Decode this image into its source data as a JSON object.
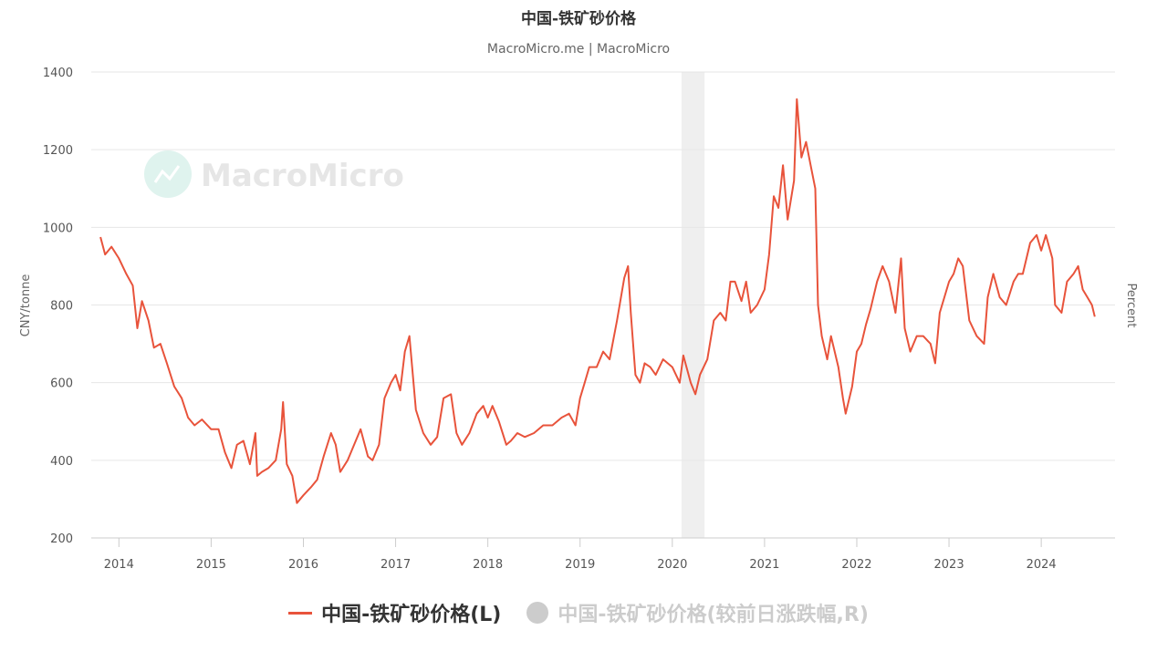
{
  "chart_data": {
    "type": "line",
    "title": "中国-铁矿砂价格",
    "subtitle": "MacroMicro.me | MacroMicro",
    "watermark": "MacroMicro",
    "ylabel_left": "CNY/tonne",
    "ylabel_right": "Percent",
    "ylim": [
      200,
      1400
    ],
    "yticks": [
      200,
      400,
      600,
      800,
      1000,
      1200,
      1400
    ],
    "xlim": [
      2013.7,
      2024.8
    ],
    "xticks": [
      "2014",
      "2015",
      "2016",
      "2017",
      "2018",
      "2019",
      "2020",
      "2021",
      "2022",
      "2023",
      "2024"
    ],
    "grid": true,
    "legend_position": "bottom",
    "shaded_region": {
      "start": 2020.1,
      "end": 2020.35
    },
    "series": [
      {
        "name": "中国-铁矿砂价格(L)",
        "color": "#e8533b",
        "visible": true,
        "x": [
          2013.8,
          2013.85,
          2013.92,
          2014.0,
          2014.08,
          2014.15,
          2014.2,
          2014.25,
          2014.32,
          2014.38,
          2014.45,
          2014.52,
          2014.6,
          2014.68,
          2014.75,
          2014.82,
          2014.9,
          2015.0,
          2015.08,
          2015.15,
          2015.22,
          2015.28,
          2015.35,
          2015.42,
          2015.48,
          2015.5,
          2015.55,
          2015.62,
          2015.7,
          2015.76,
          2015.78,
          2015.82,
          2015.88,
          2015.93,
          2016.0,
          2016.08,
          2016.15,
          2016.22,
          2016.3,
          2016.35,
          2016.4,
          2016.48,
          2016.55,
          2016.62,
          2016.7,
          2016.75,
          2016.82,
          2016.88,
          2016.95,
          2017.0,
          2017.05,
          2017.1,
          2017.15,
          2017.22,
          2017.3,
          2017.38,
          2017.45,
          2017.52,
          2017.6,
          2017.66,
          2017.72,
          2017.8,
          2017.88,
          2017.95,
          2018.0,
          2018.05,
          2018.12,
          2018.2,
          2018.25,
          2018.32,
          2018.4,
          2018.5,
          2018.6,
          2018.7,
          2018.8,
          2018.88,
          2018.95,
          2019.0,
          2019.05,
          2019.1,
          2019.18,
          2019.25,
          2019.32,
          2019.4,
          2019.48,
          2019.52,
          2019.55,
          2019.6,
          2019.65,
          2019.7,
          2019.76,
          2019.82,
          2019.9,
          2020.0,
          2020.08,
          2020.12,
          2020.2,
          2020.25,
          2020.3,
          2020.38,
          2020.45,
          2020.52,
          2020.58,
          2020.63,
          2020.68,
          2020.75,
          2020.8,
          2020.85,
          2020.92,
          2021.0,
          2021.05,
          2021.1,
          2021.15,
          2021.2,
          2021.25,
          2021.32,
          2021.35,
          2021.4,
          2021.45,
          2021.5,
          2021.55,
          2021.58,
          2021.62,
          2021.68,
          2021.72,
          2021.8,
          2021.85,
          2021.88,
          2021.95,
          2022.0,
          2022.05,
          2022.1,
          2022.15,
          2022.22,
          2022.28,
          2022.35,
          2022.42,
          2022.48,
          2022.52,
          2022.58,
          2022.65,
          2022.72,
          2022.8,
          2022.85,
          2022.9,
          2022.95,
          2023.0,
          2023.05,
          2023.1,
          2023.15,
          2023.22,
          2023.3,
          2023.38,
          2023.42,
          2023.48,
          2023.55,
          2023.62,
          2023.7,
          2023.75,
          2023.8,
          2023.88,
          2023.95,
          2024.0,
          2024.05,
          2024.12,
          2024.15,
          2024.22,
          2024.28,
          2024.35,
          2024.4,
          2024.45,
          2024.5,
          2024.55,
          2024.58
        ],
        "values": [
          975,
          930,
          950,
          920,
          880,
          850,
          740,
          810,
          760,
          690,
          700,
          650,
          590,
          560,
          510,
          490,
          505,
          480,
          480,
          420,
          380,
          440,
          450,
          390,
          470,
          360,
          370,
          380,
          400,
          480,
          550,
          390,
          360,
          290,
          310,
          330,
          350,
          410,
          470,
          440,
          370,
          400,
          440,
          480,
          410,
          400,
          440,
          560,
          600,
          620,
          580,
          680,
          720,
          530,
          470,
          440,
          460,
          560,
          570,
          470,
          440,
          470,
          520,
          540,
          510,
          540,
          500,
          440,
          450,
          470,
          460,
          470,
          490,
          490,
          510,
          520,
          490,
          560,
          600,
          640,
          640,
          680,
          660,
          760,
          870,
          900,
          780,
          620,
          600,
          650,
          640,
          620,
          660,
          640,
          600,
          670,
          600,
          570,
          620,
          660,
          760,
          780,
          760,
          860,
          860,
          810,
          860,
          780,
          800,
          840,
          930,
          1080,
          1050,
          1160,
          1020,
          1120,
          1330,
          1180,
          1220,
          1160,
          1100,
          800,
          720,
          660,
          720,
          640,
          560,
          520,
          590,
          680,
          700,
          750,
          790,
          860,
          900,
          860,
          780,
          920,
          740,
          680,
          720,
          720,
          700,
          650,
          780,
          820,
          860,
          880,
          920,
          900,
          760,
          720,
          700,
          820,
          880,
          820,
          800,
          860,
          880,
          880,
          960,
          980,
          940,
          980,
          920,
          800,
          780,
          860,
          880,
          900,
          840,
          820,
          800,
          770
        ]
      },
      {
        "name": "中国-铁矿砂价格(较前日涨跌幅,R)",
        "color": "#cccccc",
        "visible": false,
        "values": []
      }
    ]
  }
}
